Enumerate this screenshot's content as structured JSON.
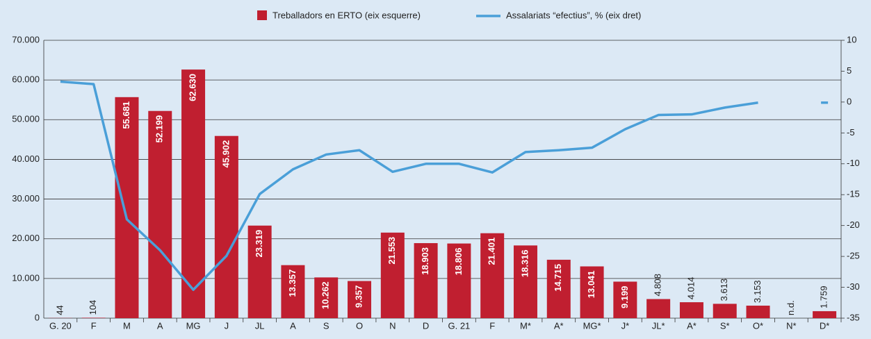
{
  "chart_data": {
    "type": "bar+line",
    "categories": [
      "G. 20",
      "F",
      "M",
      "A",
      "MG",
      "J",
      "JL",
      "A",
      "S",
      "O",
      "N",
      "D",
      "G. 21",
      "F",
      "M*",
      "A*",
      "MG*",
      "J*",
      "JL*",
      "A*",
      "S*",
      "O*",
      "N*",
      "D*"
    ],
    "series": [
      {
        "name": "Treballadors en ERTO (eix esquerre)",
        "type": "bar",
        "color": "#c01f30",
        "values": [
          44,
          104,
          55681,
          52199,
          62630,
          45902,
          23319,
          13357,
          10262,
          9357,
          21553,
          18903,
          18806,
          21401,
          18316,
          14715,
          13041,
          9199,
          4808,
          4014,
          3613,
          3153,
          null,
          1759
        ],
        "value_labels": [
          "44",
          "104",
          "55.681",
          "52.199",
          "62.630",
          "45.902",
          "23.319",
          "13.357",
          "10.262",
          "9.357",
          "21.553",
          "18.903",
          "18.806",
          "21.401",
          "18.316",
          "14.715",
          "13.041",
          "9.199",
          "4.808",
          "4.014",
          "3.613",
          "3.153",
          "n.d.",
          "1.759"
        ]
      },
      {
        "name": "Assalariats “efectius”, % (eix dret)",
        "type": "line",
        "axis": "y2",
        "color": "#4a9fd8",
        "values": [
          3.3,
          2.9,
          -19,
          -24,
          -30.4,
          -24.9,
          -14.9,
          -10.9,
          -8.5,
          -7.8,
          -11.3,
          -10,
          -10,
          -11.4,
          -8.1,
          -7.8,
          -7.4,
          -4.4,
          -2.1,
          -2,
          -0.9,
          -0.1,
          null,
          -0.1
        ]
      }
    ],
    "ylim": [
      0,
      70000
    ],
    "yticks": [
      0,
      {
        "value": 10000,
        "label": "10.000"
      },
      {
        "value": 20000,
        "label": "20.000"
      },
      {
        "value": 30000,
        "label": "30.000"
      },
      {
        "value": 40000,
        "label": "40.000"
      },
      {
        "value": 50000,
        "label": "50.000"
      },
      {
        "value": 60000,
        "label": "60.000"
      },
      {
        "value": 70000,
        "label": "70.000"
      }
    ],
    "y2lim": [
      -35,
      10
    ],
    "y2ticks": [
      -35,
      -30,
      -25,
      -20,
      -15,
      -10,
      -5,
      0,
      5,
      10
    ],
    "grid": true
  }
}
